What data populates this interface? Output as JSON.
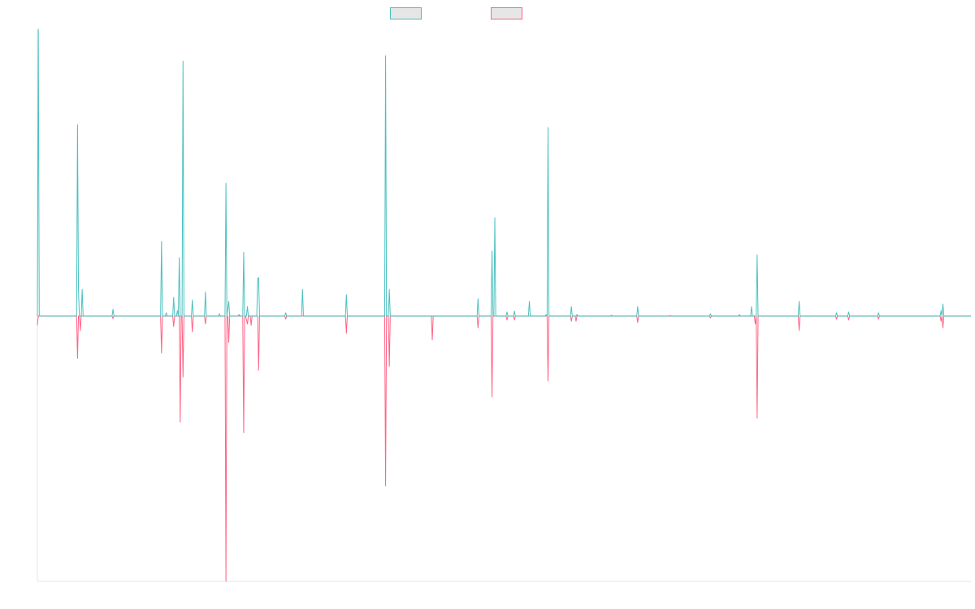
{
  "chart_data": {
    "type": "line",
    "title": "",
    "xlabel": "",
    "ylabel": "",
    "grid": false,
    "legend_position": "top-center",
    "xlim": [
      0,
      1000
    ],
    "ylim": [
      -1.0,
      1.08
    ],
    "series": [
      {
        "color": "#4bc0c0",
        "points": [
          [
            0,
            0.0
          ],
          [
            1,
            1.08
          ],
          [
            2,
            0.0
          ],
          [
            42,
            0.0
          ],
          [
            43,
            0.72
          ],
          [
            44,
            0.1
          ],
          [
            45,
            0.0
          ],
          [
            47,
            0.0
          ],
          [
            48,
            0.1
          ],
          [
            49,
            0.0
          ],
          [
            80,
            0.0
          ],
          [
            81,
            0.025
          ],
          [
            82,
            0.0
          ],
          [
            132,
            0.0
          ],
          [
            133,
            0.28
          ],
          [
            134,
            0.0
          ],
          [
            137,
            0.0
          ],
          [
            138,
            0.012
          ],
          [
            139,
            0.0
          ],
          [
            145,
            0.0
          ],
          [
            146,
            0.07
          ],
          [
            147,
            0.0
          ],
          [
            149,
            0.0
          ],
          [
            150,
            0.02
          ],
          [
            151,
            0.0
          ],
          [
            152,
            0.22
          ],
          [
            153,
            0.0
          ],
          [
            155,
            0.0
          ],
          [
            156,
            0.96
          ],
          [
            157,
            0.0
          ],
          [
            165,
            0.0
          ],
          [
            166,
            0.06
          ],
          [
            167,
            0.0
          ],
          [
            179,
            0.0
          ],
          [
            180,
            0.09
          ],
          [
            181,
            0.0
          ],
          [
            194,
            0.0
          ],
          [
            195,
            0.008
          ],
          [
            196,
            0.0
          ],
          [
            201,
            0.0
          ],
          [
            202,
            0.5
          ],
          [
            203,
            0.0
          ],
          [
            205,
            0.055
          ],
          [
            206,
            0.0
          ],
          [
            215,
            0.0
          ],
          [
            216,
            0.005
          ],
          [
            217,
            0.0
          ],
          [
            220,
            0.0
          ],
          [
            221,
            0.24
          ],
          [
            222,
            0.0
          ],
          [
            224,
            0.0
          ],
          [
            225,
            0.035
          ],
          [
            226,
            0.0
          ],
          [
            235,
            0.0
          ],
          [
            236,
            0.14
          ],
          [
            237,
            0.145
          ],
          [
            238,
            0.0
          ],
          [
            265,
            0.0
          ],
          [
            266,
            0.012
          ],
          [
            267,
            0.0
          ],
          [
            283,
            0.0
          ],
          [
            284,
            0.1
          ],
          [
            285,
            0.0
          ],
          [
            330,
            0.0
          ],
          [
            331,
            0.08
          ],
          [
            332,
            0.0
          ],
          [
            372,
            0.0
          ],
          [
            373,
            0.98
          ],
          [
            374,
            0.0
          ],
          [
            376,
            0.0
          ],
          [
            377,
            0.1
          ],
          [
            378,
            0.0
          ],
          [
            471,
            0.0
          ],
          [
            472,
            0.065
          ],
          [
            473,
            0.0
          ],
          [
            486,
            0.0
          ],
          [
            487,
            0.245
          ],
          [
            488,
            0.0
          ],
          [
            489,
            0.0
          ],
          [
            490,
            0.37
          ],
          [
            491,
            0.0
          ],
          [
            502,
            0.0
          ],
          [
            503,
            0.015
          ],
          [
            504,
            0.0
          ],
          [
            510,
            0.0
          ],
          [
            511,
            0.018
          ],
          [
            512,
            0.0
          ],
          [
            526,
            0.0
          ],
          [
            527,
            0.055
          ],
          [
            528,
            0.0
          ],
          [
            544,
            0.0
          ],
          [
            545,
            0.005
          ],
          [
            546,
            0.0
          ],
          [
            546,
            0.0
          ],
          [
            547,
            0.71
          ],
          [
            548,
            0.0
          ],
          [
            571,
            0.0
          ],
          [
            572,
            0.035
          ],
          [
            573,
            0.0
          ],
          [
            577,
            0.0
          ],
          [
            578,
            0.005
          ],
          [
            579,
            0.0
          ],
          [
            614,
            0.0
          ],
          [
            615,
            0.003
          ],
          [
            616,
            0.0
          ],
          [
            642,
            0.0
          ],
          [
            643,
            0.035
          ],
          [
            644,
            0.0
          ],
          [
            677,
            0.0
          ],
          [
            678,
            0.002
          ],
          [
            679,
            0.0
          ],
          [
            720,
            0.0
          ],
          [
            721,
            0.008
          ],
          [
            722,
            0.0
          ],
          [
            751,
            0.0
          ],
          [
            752,
            0.005
          ],
          [
            753,
            0.0
          ],
          [
            764,
            0.0
          ],
          [
            765,
            0.035
          ],
          [
            766,
            0.0
          ],
          [
            770,
            0.0
          ],
          [
            771,
            0.23
          ],
          [
            772,
            0.0
          ],
          [
            815,
            0.0
          ],
          [
            816,
            0.055
          ],
          [
            817,
            0.0
          ],
          [
            855,
            0.0
          ],
          [
            856,
            0.012
          ],
          [
            857,
            0.0
          ],
          [
            868,
            0.0
          ],
          [
            869,
            0.015
          ],
          [
            870,
            0.0
          ],
          [
            900,
            0.0
          ],
          [
            901,
            0.012
          ],
          [
            902,
            0.0
          ],
          [
            967,
            0.0
          ],
          [
            968,
            0.02
          ],
          [
            969,
            0.0
          ],
          [
            970,
            0.045
          ],
          [
            971,
            0.0
          ],
          [
            1000,
            0.0
          ]
        ]
      },
      {
        "color": "#ff6384",
        "points": [
          [
            0,
            -0.035
          ],
          [
            1,
            0.0
          ],
          [
            42,
            0.0
          ],
          [
            43,
            -0.16
          ],
          [
            44,
            0.0
          ],
          [
            45,
            0.0
          ],
          [
            46,
            -0.055
          ],
          [
            47,
            0.0
          ],
          [
            80,
            0.0
          ],
          [
            81,
            -0.01
          ],
          [
            82,
            0.0
          ],
          [
            132,
            0.0
          ],
          [
            133,
            -0.14
          ],
          [
            134,
            0.0
          ],
          [
            145,
            0.0
          ],
          [
            146,
            -0.04
          ],
          [
            147,
            0.0
          ],
          [
            152,
            0.0
          ],
          [
            153,
            -0.4
          ],
          [
            154,
            0.0
          ],
          [
            155,
            0.0
          ],
          [
            156,
            -0.23
          ],
          [
            157,
            0.0
          ],
          [
            165,
            0.0
          ],
          [
            166,
            -0.06
          ],
          [
            167,
            0.0
          ],
          [
            179,
            0.0
          ],
          [
            180,
            -0.03
          ],
          [
            181,
            0.0
          ],
          [
            201,
            0.0
          ],
          [
            202,
            -1.0
          ],
          [
            203,
            0.0
          ],
          [
            204,
            0.0
          ],
          [
            205,
            -0.1
          ],
          [
            206,
            0.0
          ],
          [
            220,
            0.0
          ],
          [
            221,
            -0.44
          ],
          [
            222,
            0.0
          ],
          [
            223,
            0.0
          ],
          [
            225,
            -0.03
          ],
          [
            226,
            0.0
          ],
          [
            228,
            0.0
          ],
          [
            229,
            -0.035
          ],
          [
            230,
            0.0
          ],
          [
            236,
            0.0
          ],
          [
            237,
            -0.205
          ],
          [
            238,
            0.0
          ],
          [
            265,
            0.0
          ],
          [
            266,
            -0.012
          ],
          [
            267,
            0.0
          ],
          [
            330,
            0.0
          ],
          [
            331,
            -0.065
          ],
          [
            332,
            0.0
          ],
          [
            372,
            0.0
          ],
          [
            373,
            -0.64
          ],
          [
            374,
            0.0
          ],
          [
            376,
            0.0
          ],
          [
            377,
            -0.19
          ],
          [
            378,
            0.0
          ],
          [
            422,
            0.0
          ],
          [
            423,
            -0.09
          ],
          [
            424,
            0.0
          ],
          [
            471,
            0.0
          ],
          [
            472,
            -0.045
          ],
          [
            473,
            0.0
          ],
          [
            486,
            0.0
          ],
          [
            487,
            -0.305
          ],
          [
            488,
            0.0
          ],
          [
            502,
            0.0
          ],
          [
            503,
            -0.015
          ],
          [
            504,
            0.0
          ],
          [
            510,
            0.0
          ],
          [
            511,
            -0.015
          ],
          [
            512,
            0.0
          ],
          [
            546,
            0.0
          ],
          [
            547,
            -0.245
          ],
          [
            548,
            0.0
          ],
          [
            571,
            0.0
          ],
          [
            572,
            -0.02
          ],
          [
            573,
            0.0
          ],
          [
            576,
            0.0
          ],
          [
            577,
            -0.02
          ],
          [
            578,
            0.0
          ],
          [
            642,
            0.0
          ],
          [
            643,
            -0.025
          ],
          [
            644,
            0.0
          ],
          [
            720,
            0.0
          ],
          [
            721,
            -0.008
          ],
          [
            722,
            0.0
          ],
          [
            768,
            0.0
          ],
          [
            769,
            -0.03
          ],
          [
            770,
            0.0
          ],
          [
            771,
            -0.385
          ],
          [
            772,
            0.0
          ],
          [
            815,
            0.0
          ],
          [
            816,
            -0.055
          ],
          [
            817,
            0.0
          ],
          [
            855,
            0.0
          ],
          [
            856,
            -0.012
          ],
          [
            857,
            0.0
          ],
          [
            868,
            0.0
          ],
          [
            869,
            -0.015
          ],
          [
            870,
            0.0
          ],
          [
            900,
            0.0
          ],
          [
            901,
            -0.012
          ],
          [
            902,
            0.0
          ],
          [
            967,
            0.0
          ],
          [
            968,
            -0.02
          ],
          [
            969,
            0.0
          ],
          [
            970,
            -0.045
          ],
          [
            971,
            0.0
          ],
          [
            1000,
            0.0
          ]
        ]
      }
    ]
  }
}
